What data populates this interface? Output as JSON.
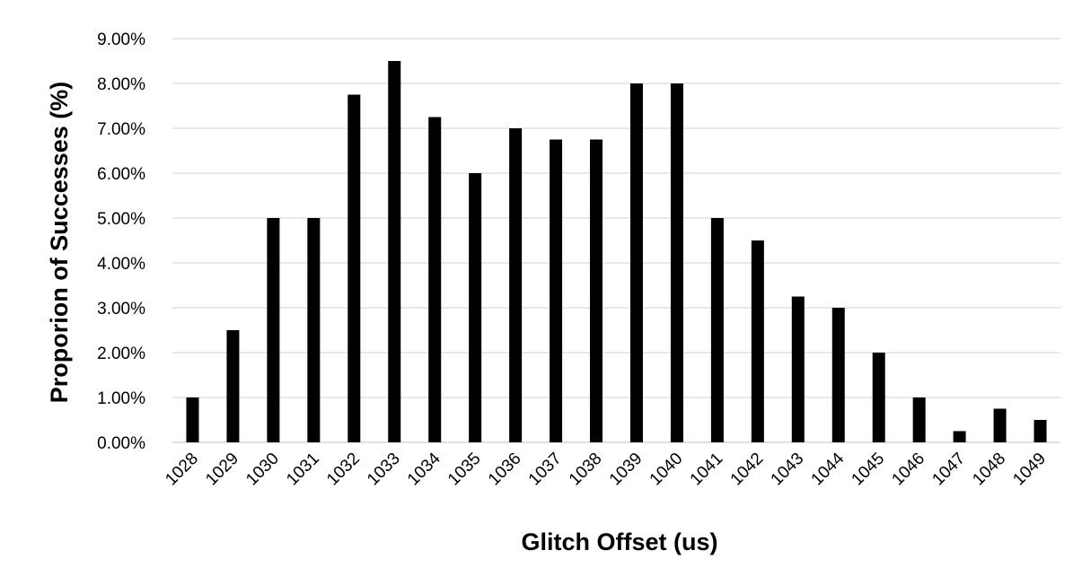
{
  "chart_data": {
    "type": "bar",
    "title": "",
    "xlabel": "Glitch Offset (us)",
    "ylabel": "Proporion of Successes (%)",
    "categories": [
      "1028",
      "1029",
      "1030",
      "1031",
      "1032",
      "1033",
      "1034",
      "1035",
      "1036",
      "1037",
      "1038",
      "1039",
      "1040",
      "1041",
      "1042",
      "1043",
      "1044",
      "1045",
      "1046",
      "1047",
      "1048",
      "1049"
    ],
    "values": [
      1.0,
      2.5,
      5.0,
      5.0,
      7.75,
      8.5,
      7.25,
      6.0,
      7.0,
      6.75,
      6.75,
      8.0,
      8.0,
      5.0,
      4.5,
      3.25,
      3.0,
      2.0,
      1.0,
      0.25,
      0.75,
      0.5
    ],
    "ylim": [
      0,
      9
    ],
    "yticks": [
      0,
      1,
      2,
      3,
      4,
      5,
      6,
      7,
      8,
      9
    ],
    "ytick_labels": [
      "0.00%",
      "1.00%",
      "2.00%",
      "3.00%",
      "4.00%",
      "5.00%",
      "6.00%",
      "7.00%",
      "8.00%",
      "9.00%"
    ],
    "grid": true,
    "legend": "none",
    "colors": {
      "bar": "#000000",
      "grid": "#d9d9d9",
      "text": "#000000"
    }
  }
}
